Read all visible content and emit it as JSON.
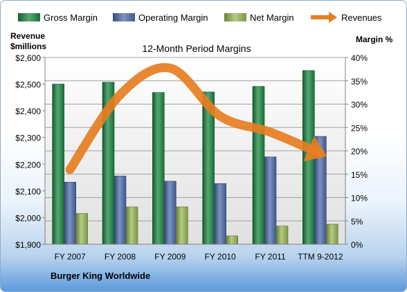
{
  "chart_data": {
    "type": "bar",
    "title": "12-Month Period Margins",
    "categories": [
      "FY 2007",
      "FY 2008",
      "FY 2009",
      "FY 2010",
      "FY 2011",
      "TTM 9-2012"
    ],
    "series": [
      {
        "name": "Gross Margin",
        "axis": "right",
        "color": "#1e8a45",
        "values": [
          34.3,
          34.7,
          32.5,
          32.6,
          33.8,
          37.2
        ]
      },
      {
        "name": "Operating Margin",
        "axis": "right",
        "color": "#4f6fae",
        "values": [
          13.3,
          14.6,
          13.5,
          13.0,
          18.7,
          23.1
        ]
      },
      {
        "name": "Net Margin",
        "axis": "right",
        "color": "#9bbb59",
        "values": [
          6.6,
          8.0,
          8.0,
          1.8,
          3.9,
          4.3
        ]
      },
      {
        "name": "Revenues",
        "axis": "left",
        "type": "line",
        "color": "#e67e22",
        "values": [
          2180,
          2460,
          2560,
          2380,
          2320,
          2240
        ]
      }
    ],
    "left_axis": {
      "label_line1": "Revenue",
      "label_line2": "$millions",
      "min": 1900,
      "max": 2600,
      "step": 100,
      "ticks": [
        "$1,900",
        "$2,000",
        "$2,100",
        "$2,200",
        "$2,300",
        "$2,400",
        "$2,500",
        "$2,600"
      ]
    },
    "right_axis": {
      "label": "Margin %",
      "min": 0,
      "max": 40,
      "step": 5,
      "ticks": [
        "0%",
        "5%",
        "10%",
        "15%",
        "20%",
        "25%",
        "30%",
        "35%",
        "40%"
      ]
    },
    "grid": true,
    "legend_position": "top",
    "footnote": "Burger King Worldwide"
  }
}
